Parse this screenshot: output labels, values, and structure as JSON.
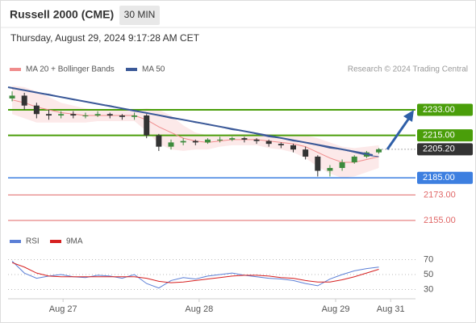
{
  "chart_data": {
    "type": "candlestick",
    "title": "Russell 2000 (CME)",
    "timeframe": "30 MIN",
    "subtitle": "Thursday, August 29, 2024 9:17:28 AM CET",
    "credit": "Research © 2024 Trading Central",
    "legend": [
      {
        "name": "MA 20 + Bollinger Bands",
        "color": "#f08c8c"
      },
      {
        "name": "MA 50",
        "color": "#3b5998"
      }
    ],
    "xlim": [
      0,
      100
    ],
    "xticks": [
      {
        "value": 13.5,
        "label": "Aug 27"
      },
      {
        "value": 46.9,
        "label": "Aug 28"
      },
      {
        "value": 80.4,
        "label": "Aug 29"
      },
      {
        "value": 93.9,
        "label": "Aug 31"
      }
    ],
    "ylim": [
      2148,
      2254
    ],
    "x": [
      1,
      4,
      7,
      10,
      13,
      16,
      19,
      22,
      25,
      28,
      31,
      34,
      37,
      40,
      43,
      46,
      49,
      52,
      55,
      58,
      61,
      64,
      67,
      70,
      73,
      76,
      79,
      82,
      85,
      88,
      91
    ],
    "open": [
      2241,
      2243,
      2236,
      2230,
      2229,
      2230,
      2229,
      2229,
      2230,
      2229,
      2228,
      2229,
      2215,
      2207,
      2210,
      2211,
      2210,
      2212,
      2212,
      2213,
      2212,
      2211,
      2209,
      2208,
      2205,
      2200,
      2190,
      2192,
      2196,
      2200,
      2203
    ],
    "high": [
      2246,
      2245,
      2238,
      2233,
      2232,
      2232,
      2231,
      2232,
      2231,
      2230,
      2231,
      2230,
      2216,
      2212,
      2213,
      2212,
      2213,
      2214,
      2214,
      2214,
      2213,
      2212,
      2210,
      2209,
      2207,
      2201,
      2194,
      2198,
      2201,
      2204,
      2206
    ],
    "low": [
      2239,
      2233,
      2227,
      2226,
      2227,
      2227,
      2227,
      2228,
      2227,
      2226,
      2226,
      2213,
      2204,
      2205,
      2208,
      2208,
      2209,
      2210,
      2211,
      2210,
      2209,
      2207,
      2206,
      2203,
      2198,
      2186,
      2186,
      2190,
      2195,
      2199,
      2202
    ],
    "close": [
      2243,
      2236,
      2230,
      2229,
      2230,
      2229,
      2229,
      2230,
      2229,
      2228,
      2229,
      2215,
      2207,
      2210,
      2211,
      2210,
      2212,
      2212,
      2213,
      2212,
      2211,
      2209,
      2208,
      2205,
      2200,
      2190,
      2192,
      2196,
      2200,
      2203,
      2205.2
    ],
    "up_color": "#3d8b3d",
    "down_color": "#333333",
    "ma20": [
      2240,
      2238,
      2235,
      2233,
      2231,
      2230,
      2229,
      2229,
      2229,
      2229,
      2229,
      2226,
      2221,
      2217,
      2213,
      2211,
      2210,
      2211,
      2212,
      2212,
      2212,
      2211,
      2210,
      2209,
      2207,
      2203,
      2199,
      2196,
      2196,
      2198,
      2200
    ],
    "bb_upper": [
      2250,
      2249,
      2246,
      2242,
      2238,
      2236,
      2234,
      2233,
      2233,
      2233,
      2233,
      2234,
      2233,
      2229,
      2222,
      2217,
      2215,
      2215,
      2216,
      2216,
      2216,
      2216,
      2215,
      2215,
      2215,
      2213,
      2210,
      2207,
      2206,
      2207,
      2208
    ],
    "bb_lower": [
      2230,
      2227,
      2224,
      2224,
      2224,
      2224,
      2224,
      2225,
      2225,
      2225,
      2225,
      2218,
      2209,
      2205,
      2204,
      2205,
      2205,
      2207,
      2208,
      2208,
      2208,
      2206,
      2205,
      2203,
      2199,
      2193,
      2188,
      2185,
      2186,
      2189,
      2192
    ],
    "ma50": [
      2248,
      2247,
      2245,
      2244,
      2242,
      2240,
      2239,
      2237,
      2236,
      2234,
      2232,
      2231,
      2229,
      2227,
      2226,
      2224,
      2223,
      2221,
      2219,
      2218,
      2216,
      2214,
      2213,
      2211,
      2210,
      2208,
      2206,
      2205,
      2203,
      2201,
      2200
    ],
    "levels": [
      {
        "value": 2233,
        "label": "2233.00",
        "color": "#4a9e0a",
        "style": "box"
      },
      {
        "value": 2215,
        "label": "2215.00",
        "color": "#4a9e0a",
        "style": "box"
      },
      {
        "value": 2205.2,
        "label": "2205.20",
        "color": "#333333",
        "style": "current"
      },
      {
        "value": 2185,
        "label": "2185.00",
        "color": "#3d7fe0",
        "style": "box"
      },
      {
        "value": 2173,
        "label": "2173.00",
        "color": "#e06666",
        "style": "text"
      },
      {
        "value": 2155,
        "label": "2155.00",
        "color": "#e06666",
        "style": "text"
      }
    ],
    "rsi_legend": [
      {
        "name": "RSI",
        "color": "#5b7fd6"
      },
      {
        "name": "9MA",
        "color": "#d62020"
      }
    ],
    "rsi_ylim": [
      15,
      85
    ],
    "rsi_yticks": [
      70,
      50,
      30
    ],
    "rsi": [
      68,
      52,
      45,
      48,
      50,
      47,
      46,
      49,
      48,
      45,
      50,
      38,
      32,
      42,
      46,
      44,
      48,
      50,
      52,
      49,
      47,
      45,
      44,
      42,
      38,
      35,
      44,
      50,
      55,
      58,
      60
    ],
    "rsi_ma": [
      66,
      60,
      52,
      48,
      47,
      47,
      47,
      47,
      47,
      47,
      47,
      45,
      41,
      39,
      40,
      42,
      44,
      46,
      48,
      49,
      49,
      48,
      46,
      45,
      42,
      40,
      40,
      43,
      47,
      52,
      57
    ]
  }
}
